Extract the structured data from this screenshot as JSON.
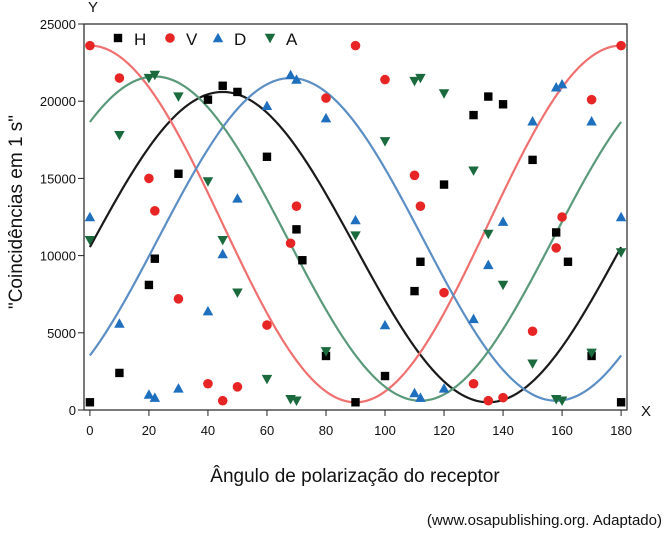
{
  "chart_data": {
    "type": "scatter",
    "xlabel": "Ângulo de polarização do receptor",
    "ylabel": "\"Coincidências em 1 s\"",
    "x_axis_letter": "X",
    "y_axis_letter": "Y",
    "source": "(www.osapublishing.org. Adaptado)",
    "xlim": [
      -2,
      182
    ],
    "ylim": [
      0,
      25000
    ],
    "x_ticks": [
      0,
      20,
      40,
      60,
      80,
      100,
      120,
      140,
      160,
      180
    ],
    "x_tick_labels": [
      "0",
      "20",
      "40",
      "60",
      "80",
      "100",
      "120",
      "140",
      "160",
      "180"
    ],
    "y_ticks": [
      0,
      5000,
      10000,
      15000,
      20000,
      25000
    ],
    "y_tick_labels": [
      "0",
      "5000",
      "10000",
      "15000",
      "20000",
      "25000"
    ],
    "grid": false,
    "legend_position": "top-left",
    "series": [
      {
        "name": "H",
        "marker": "square",
        "color": "#000000",
        "line_color": "#1a1a1a",
        "curve": {
          "min": 500,
          "max": 20600,
          "peak_x": [
            45,
            135
          ]
        },
        "points": [
          [
            0,
            500
          ],
          [
            10,
            2400
          ],
          [
            20,
            8100
          ],
          [
            22,
            9800
          ],
          [
            30,
            15300
          ],
          [
            40,
            20100
          ],
          [
            45,
            21000
          ],
          [
            50,
            20600
          ],
          [
            60,
            16400
          ],
          [
            70,
            11700
          ],
          [
            72,
            9700
          ],
          [
            80,
            3500
          ],
          [
            90,
            500
          ],
          [
            100,
            2200
          ],
          [
            110,
            7700
          ],
          [
            112,
            9600
          ],
          [
            120,
            14600
          ],
          [
            130,
            19100
          ],
          [
            135,
            20300
          ],
          [
            140,
            19800
          ],
          [
            150,
            16200
          ],
          [
            158,
            11500
          ],
          [
            162,
            9600
          ],
          [
            170,
            3500
          ],
          [
            180,
            500
          ]
        ]
      },
      {
        "name": "V",
        "marker": "circle",
        "color": "#e82525",
        "line_color": "#f07070",
        "curve": {
          "min": 500,
          "max": 23600,
          "peak_x": [
            0,
            90,
            180
          ]
        },
        "points": [
          [
            0,
            23600
          ],
          [
            10,
            21500
          ],
          [
            20,
            15000
          ],
          [
            22,
            12900
          ],
          [
            30,
            7200
          ],
          [
            40,
            1700
          ],
          [
            45,
            600
          ],
          [
            50,
            1500
          ],
          [
            60,
            5500
          ],
          [
            68,
            10800
          ],
          [
            70,
            13200
          ],
          [
            80,
            20200
          ],
          [
            90,
            23600
          ],
          [
            100,
            21400
          ],
          [
            110,
            15200
          ],
          [
            112,
            13200
          ],
          [
            120,
            7600
          ],
          [
            130,
            1700
          ],
          [
            135,
            600
          ],
          [
            140,
            800
          ],
          [
            150,
            5100
          ],
          [
            158,
            10500
          ],
          [
            160,
            12500
          ],
          [
            170,
            20100
          ],
          [
            180,
            23600
          ]
        ]
      },
      {
        "name": "D",
        "marker": "triangle-up",
        "color": "#1f6fbf",
        "line_color": "#5b8ec4",
        "curve": {
          "min": 600,
          "max": 21500,
          "peak_x": [
            68,
            158
          ]
        },
        "points": [
          [
            0,
            12500
          ],
          [
            10,
            5600
          ],
          [
            20,
            1000
          ],
          [
            22,
            800
          ],
          [
            30,
            1400
          ],
          [
            40,
            6400
          ],
          [
            45,
            10100
          ],
          [
            50,
            13700
          ],
          [
            60,
            19700
          ],
          [
            68,
            21700
          ],
          [
            70,
            21400
          ],
          [
            80,
            18900
          ],
          [
            90,
            12300
          ],
          [
            100,
            5500
          ],
          [
            110,
            1100
          ],
          [
            112,
            800
          ],
          [
            120,
            1400
          ],
          [
            130,
            5900
          ],
          [
            135,
            9400
          ],
          [
            140,
            12200
          ],
          [
            150,
            18700
          ],
          [
            158,
            20900
          ],
          [
            160,
            21100
          ],
          [
            170,
            18700
          ],
          [
            180,
            12500
          ]
        ]
      },
      {
        "name": "A",
        "marker": "triangle-down",
        "color": "#1a6a3e",
        "line_color": "#5a9a7a",
        "curve": {
          "min": 600,
          "max": 21600,
          "peak_x": [
            22,
            112
          ]
        },
        "points": [
          [
            0,
            11000
          ],
          [
            10,
            17800
          ],
          [
            20,
            21500
          ],
          [
            22,
            21700
          ],
          [
            30,
            20300
          ],
          [
            40,
            14800
          ],
          [
            45,
            11000
          ],
          [
            50,
            7600
          ],
          [
            60,
            2000
          ],
          [
            68,
            700
          ],
          [
            70,
            600
          ],
          [
            80,
            3800
          ],
          [
            90,
            11300
          ],
          [
            100,
            17400
          ],
          [
            110,
            21300
          ],
          [
            112,
            21500
          ],
          [
            120,
            20500
          ],
          [
            130,
            15500
          ],
          [
            135,
            11400
          ],
          [
            140,
            8100
          ],
          [
            150,
            3000
          ],
          [
            158,
            700
          ],
          [
            160,
            600
          ],
          [
            170,
            3700
          ],
          [
            180,
            10200
          ]
        ]
      }
    ]
  }
}
